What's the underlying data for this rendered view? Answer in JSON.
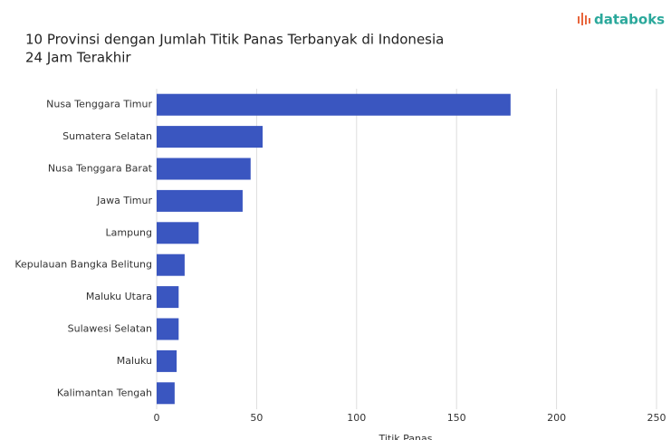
{
  "brand": "databoks",
  "chart_data": {
    "type": "hbar",
    "title": "10 Provinsi dengan Jumlah Titik Panas Terbanyak di Indonesia",
    "subtitle": "24 Jam Terakhir",
    "x_label": "Titik Panas",
    "categories": [
      "Nusa Tenggara Timur",
      "Sumatera Selatan",
      "Nusa Tenggara Barat",
      "Jawa Timur",
      "Lampung",
      "Kepulauan Bangka Belitung",
      "Maluku Utara",
      "Sulawesi Selatan",
      "Maluku",
      "Kalimantan Tengah"
    ],
    "values": [
      177,
      53,
      47,
      43,
      21,
      14,
      11,
      11,
      10,
      9
    ],
    "color": "#3a56c0",
    "xlim": [
      0,
      250
    ],
    "xticks": [
      0,
      50,
      100,
      150,
      200,
      250
    ],
    "grid": true
  }
}
